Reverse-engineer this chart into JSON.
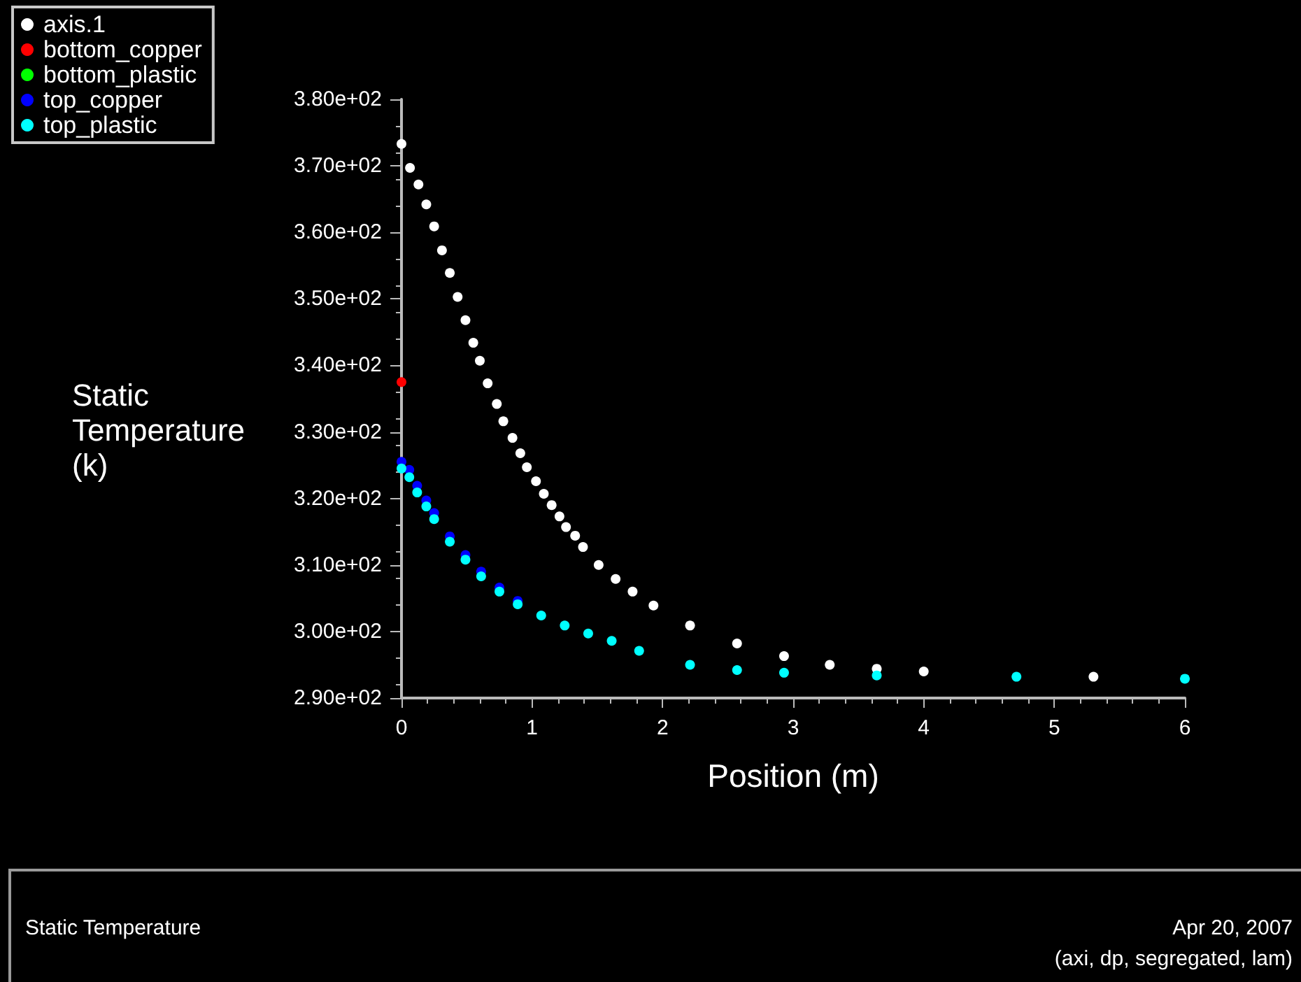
{
  "chart_data": {
    "type": "scatter",
    "title": "Static Temperature",
    "xlabel": "Position (m)",
    "ylabel": "Static Temperature (k)",
    "annotations": [
      "Apr 20, 2007",
      "(axi, dp, segregated, lam)"
    ],
    "xlim": [
      0,
      6
    ],
    "xticks": [
      0,
      1,
      2,
      3,
      4,
      5,
      6
    ],
    "ylim": [
      290,
      380
    ],
    "yticks": [
      {
        "value": 290,
        "label": "2.90e+02"
      },
      {
        "value": 300,
        "label": "3.00e+02"
      },
      {
        "value": 310,
        "label": "3.10e+02"
      },
      {
        "value": 320,
        "label": "3.20e+02"
      },
      {
        "value": 330,
        "label": "3.30e+02"
      },
      {
        "value": 340,
        "label": "3.40e+02"
      },
      {
        "value": 350,
        "label": "3.50e+02"
      },
      {
        "value": 360,
        "label": "3.60e+02"
      },
      {
        "value": 370,
        "label": "3.70e+02"
      },
      {
        "value": 380,
        "label": "3.80e+02"
      }
    ],
    "grid": false,
    "legend": "top left",
    "marker": "circle",
    "series": [
      {
        "name": "axis.1",
        "color": "#ffffff",
        "x": [
          0,
          0.065,
          0.13,
          0.19,
          0.25,
          0.31,
          0.37,
          0.43,
          0.49,
          0.55,
          0.6,
          0.66,
          0.73,
          0.78,
          0.85,
          0.91,
          0.96,
          1.03,
          1.09,
          1.15,
          1.21,
          1.26,
          1.33,
          1.39,
          1.51,
          1.64,
          1.77,
          1.93,
          2.21,
          2.57,
          2.93,
          3.28,
          3.64,
          4.0,
          5.3
        ],
        "values": [
          373.3,
          369.7,
          367.2,
          364.2,
          360.9,
          357.3,
          353.9,
          350.3,
          346.8,
          343.4,
          340.7,
          337.3,
          334.2,
          331.6,
          329.1,
          326.8,
          324.7,
          322.6,
          320.7,
          319,
          317.3,
          315.7,
          314.4,
          312.7,
          310,
          307.9,
          306,
          303.9,
          300.9,
          298.2,
          296.3,
          295,
          294.4,
          294,
          293.2
        ]
      },
      {
        "name": "bottom_copper",
        "color": "#ff0000",
        "x": [
          0
        ],
        "values": [
          337.5
        ]
      },
      {
        "name": "bottom_plastic",
        "color": "#00ff00"
      },
      {
        "name": "top_copper",
        "color": "#0000ff",
        "x": [
          0,
          0.06,
          0.12,
          0.19,
          0.25,
          0.37,
          0.49,
          0.61,
          0.75,
          0.89
        ],
        "values": [
          325.5,
          324.3,
          321.9,
          319.7,
          317.8,
          314.3,
          311.5,
          309,
          306.6,
          304.6
        ]
      },
      {
        "name": "top_plastic",
        "color": "#00ffff",
        "x": [
          0,
          0.06,
          0.12,
          0.19,
          0.25,
          0.37,
          0.49,
          0.61,
          0.75,
          0.89,
          1.07,
          1.25,
          1.43,
          1.61,
          1.82,
          2.21,
          2.57,
          2.93,
          3.64,
          4.71,
          6.0
        ],
        "values": [
          324.5,
          323.2,
          320.9,
          318.8,
          316.9,
          313.5,
          310.8,
          308.3,
          306,
          304.1,
          302.4,
          300.9,
          299.7,
          298.6,
          297.1,
          295,
          294.2,
          293.8,
          293.4,
          293.2,
          292.9
        ]
      }
    ]
  }
}
